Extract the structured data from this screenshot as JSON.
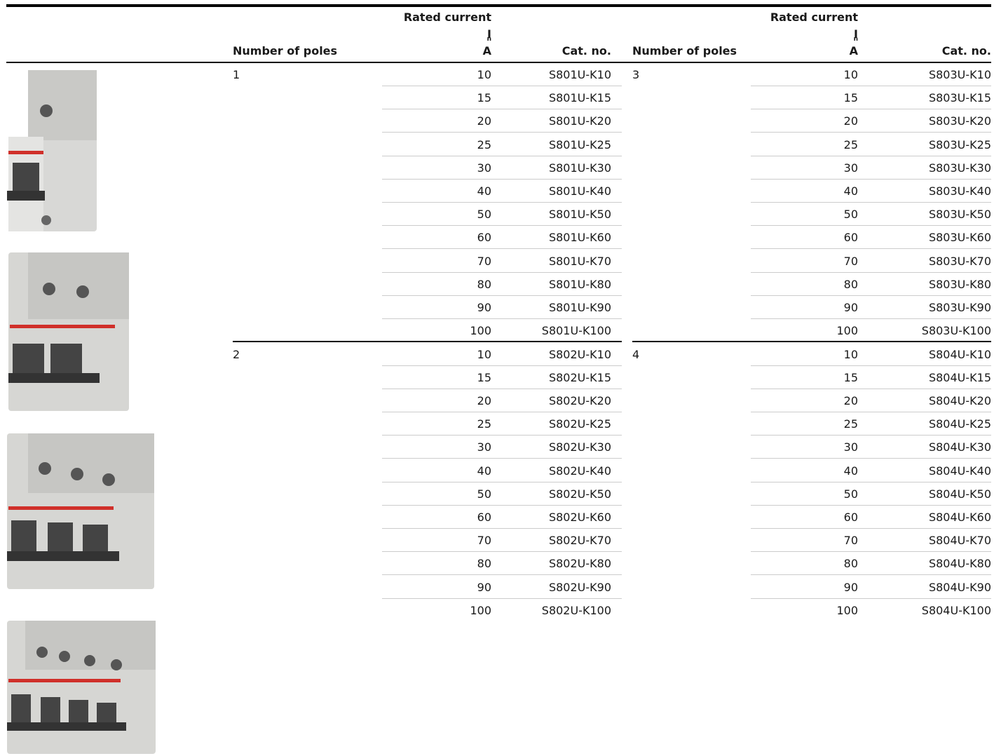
{
  "table": {
    "blocks": [
      {
        "header": {
          "poles": "Number of poles",
          "current": "Rated current",
          "symbol": "I",
          "subscript": "n",
          "unit": "A",
          "catalog": "Cat. no."
        },
        "groups": [
          {
            "poles": 1,
            "rows": [
              [
                10,
                "S801U-K10"
              ],
              [
                15,
                "S801U-K15"
              ],
              [
                20,
                "S801U-K20"
              ],
              [
                25,
                "S801U-K25"
              ],
              [
                30,
                "S801U-K30"
              ],
              [
                40,
                "S801U-K40"
              ],
              [
                50,
                "S801U-K50"
              ],
              [
                60,
                "S801U-K60"
              ],
              [
                70,
                "S801U-K70"
              ],
              [
                80,
                "S801U-K80"
              ],
              [
                90,
                "S801U-K90"
              ],
              [
                100,
                "S801U-K100"
              ]
            ]
          },
          {
            "poles": 2,
            "rows": [
              [
                10,
                "S802U-K10"
              ],
              [
                15,
                "S802U-K15"
              ],
              [
                20,
                "S802U-K20"
              ],
              [
                25,
                "S802U-K25"
              ],
              [
                30,
                "S802U-K30"
              ],
              [
                40,
                "S802U-K40"
              ],
              [
                50,
                "S802U-K50"
              ],
              [
                60,
                "S802U-K60"
              ],
              [
                70,
                "S802U-K70"
              ],
              [
                80,
                "S802U-K80"
              ],
              [
                90,
                "S802U-K90"
              ],
              [
                100,
                "S802U-K100"
              ]
            ]
          }
        ]
      },
      {
        "header": {
          "poles": "Number of poles",
          "current": "Rated current",
          "symbol": "I",
          "subscript": "n",
          "unit": "A",
          "catalog": "Cat. no."
        },
        "groups": [
          {
            "poles": 3,
            "rows": [
              [
                10,
                "S803U-K10"
              ],
              [
                15,
                "S803U-K15"
              ],
              [
                20,
                "S803U-K20"
              ],
              [
                25,
                "S803U-K25"
              ],
              [
                30,
                "S803U-K30"
              ],
              [
                40,
                "S803U-K40"
              ],
              [
                50,
                "S803U-K50"
              ],
              [
                60,
                "S803U-K60"
              ],
              [
                70,
                "S803U-K70"
              ],
              [
                80,
                "S803U-K80"
              ],
              [
                90,
                "S803U-K90"
              ],
              [
                100,
                "S803U-K100"
              ]
            ]
          },
          {
            "poles": 4,
            "rows": [
              [
                10,
                "S804U-K10"
              ],
              [
                15,
                "S804U-K15"
              ],
              [
                20,
                "S804U-K20"
              ],
              [
                25,
                "S804U-K25"
              ],
              [
                30,
                "S804U-K30"
              ],
              [
                40,
                "S804U-K40"
              ],
              [
                50,
                "S804U-K50"
              ],
              [
                60,
                "S804U-K60"
              ],
              [
                70,
                "S804U-K70"
              ],
              [
                80,
                "S804U-K80"
              ],
              [
                90,
                "S804U-K90"
              ],
              [
                100,
                "S804U-K100"
              ]
            ]
          }
        ]
      }
    ]
  }
}
